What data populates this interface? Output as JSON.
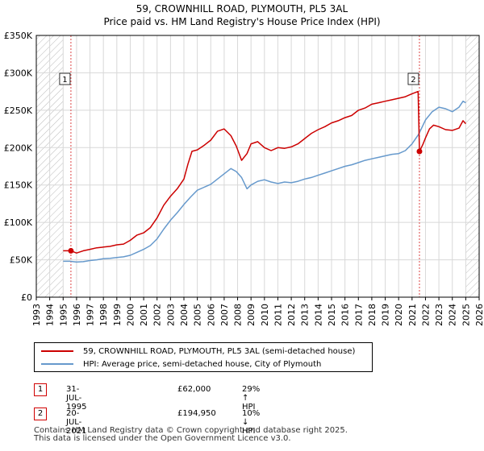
{
  "title_line1": "59, CROWNHILL ROAD, PLYMOUTH, PL5 3AL",
  "title_line2": "Price paid vs. HM Land Registry's House Price Index (HPI)",
  "legend": {
    "property_label": "59, CROWNHILL ROAD, PLYMOUTH, PL5 3AL (semi-detached house)",
    "hpi_label": "HPI: Average price, semi-detached house, City of Plymouth"
  },
  "sales": [
    {
      "num": "1",
      "date": "31-JUL-1995",
      "price": "£62,000",
      "hpi": "29% ↑ HPI"
    },
    {
      "num": "2",
      "date": "20-JUL-2021",
      "price": "£194,950",
      "hpi": "10% ↓ HPI"
    }
  ],
  "footer": {
    "line1": "Contains HM Land Registry data © Crown copyright and database right 2025.",
    "line2": "This data is licensed under the Open Government Licence v3.0."
  },
  "colors": {
    "property": "#cc0000",
    "hpi": "#6699cc",
    "marker_line": "#dd4444",
    "hatch": "#bbbbbb",
    "grid": "#d8d8d8"
  },
  "chart_data": {
    "type": "line",
    "xlim": [
      1993,
      2026
    ],
    "ylim": [
      0,
      350000
    ],
    "yticks": [
      0,
      50000,
      100000,
      150000,
      200000,
      250000,
      300000,
      350000
    ],
    "ytick_labels": [
      "£0",
      "£50K",
      "£100K",
      "£150K",
      "£200K",
      "£250K",
      "£300K",
      "£350K"
    ],
    "xticks": [
      1993,
      1994,
      1995,
      1996,
      1997,
      1998,
      1999,
      2000,
      2001,
      2002,
      2003,
      2004,
      2005,
      2006,
      2007,
      2008,
      2009,
      2010,
      2011,
      2012,
      2013,
      2014,
      2015,
      2016,
      2017,
      2018,
      2019,
      2020,
      2021,
      2022,
      2023,
      2024,
      2025,
      2026
    ],
    "hatch_before": 1995.0,
    "hatch_after": 2025.0,
    "sale_markers": [
      {
        "label": "1",
        "x": 1995.58,
        "y": 62000
      },
      {
        "label": "2",
        "x": 2021.55,
        "y": 194950
      }
    ],
    "series": [
      {
        "name": "59, CROWNHILL ROAD, PLYMOUTH, PL5 3AL (semi-detached house)",
        "x": [
          1995.0,
          1995.58,
          1996.0,
          1996.5,
          1997.0,
          1997.5,
          1998.0,
          1998.5,
          1999.0,
          1999.5,
          2000.0,
          2000.5,
          2001.0,
          2001.5,
          2002.0,
          2002.5,
          2003.0,
          2003.5,
          2004.0,
          2004.3,
          2004.6,
          2005.0,
          2005.5,
          2006.0,
          2006.5,
          2007.0,
          2007.5,
          2007.9,
          2008.3,
          2008.7,
          2009.0,
          2009.5,
          2010.0,
          2010.5,
          2011.0,
          2011.5,
          2012.0,
          2012.5,
          2013.0,
          2013.5,
          2014.0,
          2014.5,
          2015.0,
          2015.5,
          2016.0,
          2016.5,
          2017.0,
          2017.5,
          2018.0,
          2018.5,
          2019.0,
          2019.5,
          2020.0,
          2020.5,
          2021.0,
          2021.45,
          2021.55,
          2021.8,
          2022.0,
          2022.3,
          2022.6,
          2023.0,
          2023.5,
          2024.0,
          2024.5,
          2024.8,
          2025.0
        ],
        "values": [
          62000,
          62000,
          59000,
          62000,
          64000,
          66000,
          67000,
          68000,
          70000,
          71000,
          76000,
          83000,
          86000,
          93000,
          106000,
          123000,
          135000,
          145000,
          158000,
          178000,
          195000,
          197000,
          203000,
          210000,
          222000,
          225000,
          216000,
          202000,
          183000,
          192000,
          205000,
          208000,
          200000,
          196000,
          200000,
          199000,
          201000,
          205000,
          212000,
          219000,
          224000,
          228000,
          233000,
          236000,
          240000,
          243000,
          250000,
          253000,
          258000,
          260000,
          262000,
          264000,
          266000,
          268000,
          272000,
          275000,
          194950,
          204000,
          213000,
          225000,
          230000,
          228000,
          224000,
          223000,
          226000,
          236000,
          232000
        ]
      },
      {
        "name": "HPI: Average price, semi-detached house, City of Plymouth",
        "x": [
          1995.0,
          1995.5,
          1996.0,
          1996.5,
          1997.0,
          1997.5,
          1998.0,
          1998.5,
          1999.0,
          1999.5,
          2000.0,
          2000.5,
          2001.0,
          2001.5,
          2002.0,
          2002.5,
          2003.0,
          2003.5,
          2004.0,
          2004.5,
          2005.0,
          2005.5,
          2006.0,
          2006.5,
          2007.0,
          2007.5,
          2007.9,
          2008.3,
          2008.7,
          2009.0,
          2009.5,
          2010.0,
          2010.5,
          2011.0,
          2011.5,
          2012.0,
          2012.5,
          2013.0,
          2013.5,
          2014.0,
          2014.5,
          2015.0,
          2015.5,
          2016.0,
          2016.5,
          2017.0,
          2017.5,
          2018.0,
          2018.5,
          2019.0,
          2019.5,
          2020.0,
          2020.5,
          2021.0,
          2021.5,
          2022.0,
          2022.5,
          2023.0,
          2023.5,
          2024.0,
          2024.5,
          2024.8,
          2025.0
        ],
        "values": [
          48000,
          48000,
          47000,
          47500,
          49000,
          50000,
          51500,
          52000,
          53000,
          54000,
          56000,
          60000,
          64000,
          69000,
          78000,
          91000,
          103000,
          113000,
          124000,
          134000,
          143000,
          147000,
          151000,
          158000,
          165000,
          172000,
          168000,
          160000,
          145000,
          150000,
          155000,
          157000,
          154000,
          152000,
          154000,
          153000,
          155000,
          158000,
          160000,
          163000,
          166000,
          169000,
          172000,
          175000,
          177000,
          180000,
          183000,
          185000,
          187000,
          189000,
          191000,
          192000,
          196000,
          205000,
          218000,
          237000,
          248000,
          254000,
          252000,
          248000,
          254000,
          262000,
          260000
        ]
      }
    ]
  }
}
